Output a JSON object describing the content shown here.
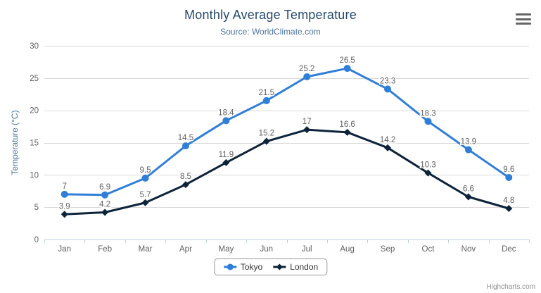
{
  "header": {
    "title": "Monthly Average Temperature",
    "subtitle": "Source: WorldClimate.com"
  },
  "toolbar": {
    "menu_icon": "hamburger-icon"
  },
  "credits": {
    "label": "Highcharts.com"
  },
  "colors": {
    "title": "#274b6d",
    "subtitle": "#4d759e",
    "axis_title": "#4d759e",
    "tick_label": "#606060",
    "grid_line": "#d8d8d8",
    "axis_line": "#c0d0e0",
    "data_label": "#606060",
    "legend_text": "#333333",
    "legend_border": "#999999",
    "credits_text": "#909090",
    "menu_icon": "#666666",
    "series_tokyo": "#2f7ed8",
    "series_london": "#0d233a"
  },
  "chart_data": {
    "type": "line",
    "title": "Monthly Average Temperature",
    "subtitle": "Source: WorldClimate.com",
    "categories": [
      "Jan",
      "Feb",
      "Mar",
      "Apr",
      "May",
      "Jun",
      "Jul",
      "Aug",
      "Sep",
      "Oct",
      "Nov",
      "Dec"
    ],
    "series": [
      {
        "name": "Tokyo",
        "color": "#2f7ed8",
        "marker": "circle",
        "values": [
          7,
          6.9,
          9.5,
          14.5,
          18.4,
          21.5,
          25.2,
          26.5,
          23.3,
          18.3,
          13.9,
          9.6
        ]
      },
      {
        "name": "London",
        "color": "#0d233a",
        "marker": "diamond",
        "values": [
          3.9,
          4.2,
          5.7,
          8.5,
          11.9,
          15.2,
          17,
          16.6,
          14.2,
          10.3,
          6.6,
          4.8
        ]
      }
    ],
    "xlabel": "",
    "ylabel": "Temperature (°C)",
    "ylim": [
      0,
      30
    ],
    "yticks": [
      0,
      5,
      10,
      15,
      20,
      25,
      30
    ],
    "grid": "horizontal",
    "legend_position": "bottom",
    "data_labels": true
  }
}
